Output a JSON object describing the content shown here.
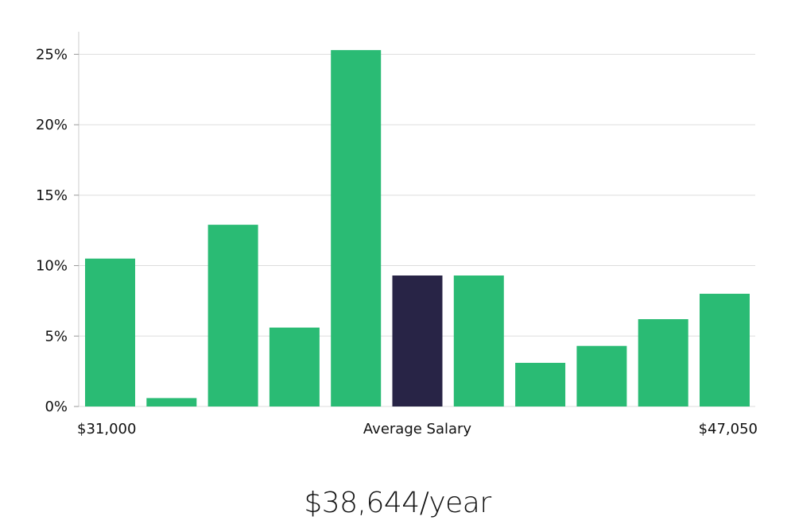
{
  "chart_data": {
    "type": "bar",
    "categories": [
      "1",
      "2",
      "3",
      "4",
      "5",
      "6",
      "7",
      "8",
      "9",
      "10",
      "11"
    ],
    "values": [
      10.5,
      0.6,
      12.9,
      5.6,
      25.3,
      9.3,
      9.3,
      3.1,
      4.3,
      6.2,
      8.0
    ],
    "highlight_index": 5,
    "ylim": [
      0,
      26.6
    ],
    "yticks": [
      0,
      5,
      10,
      15,
      20,
      25
    ],
    "ytick_labels": [
      "0%",
      "5%",
      "10%",
      "15%",
      "20%",
      "25%"
    ],
    "x_axis_labels": {
      "left": "$31,000",
      "middle": "Average Salary",
      "right": "$47,050"
    },
    "grid": true,
    "colors": {
      "bar": "#2abb74",
      "highlight": "#282446",
      "grid": "#dddddd"
    }
  },
  "summary": {
    "average_salary_text": "$38,644/year"
  }
}
